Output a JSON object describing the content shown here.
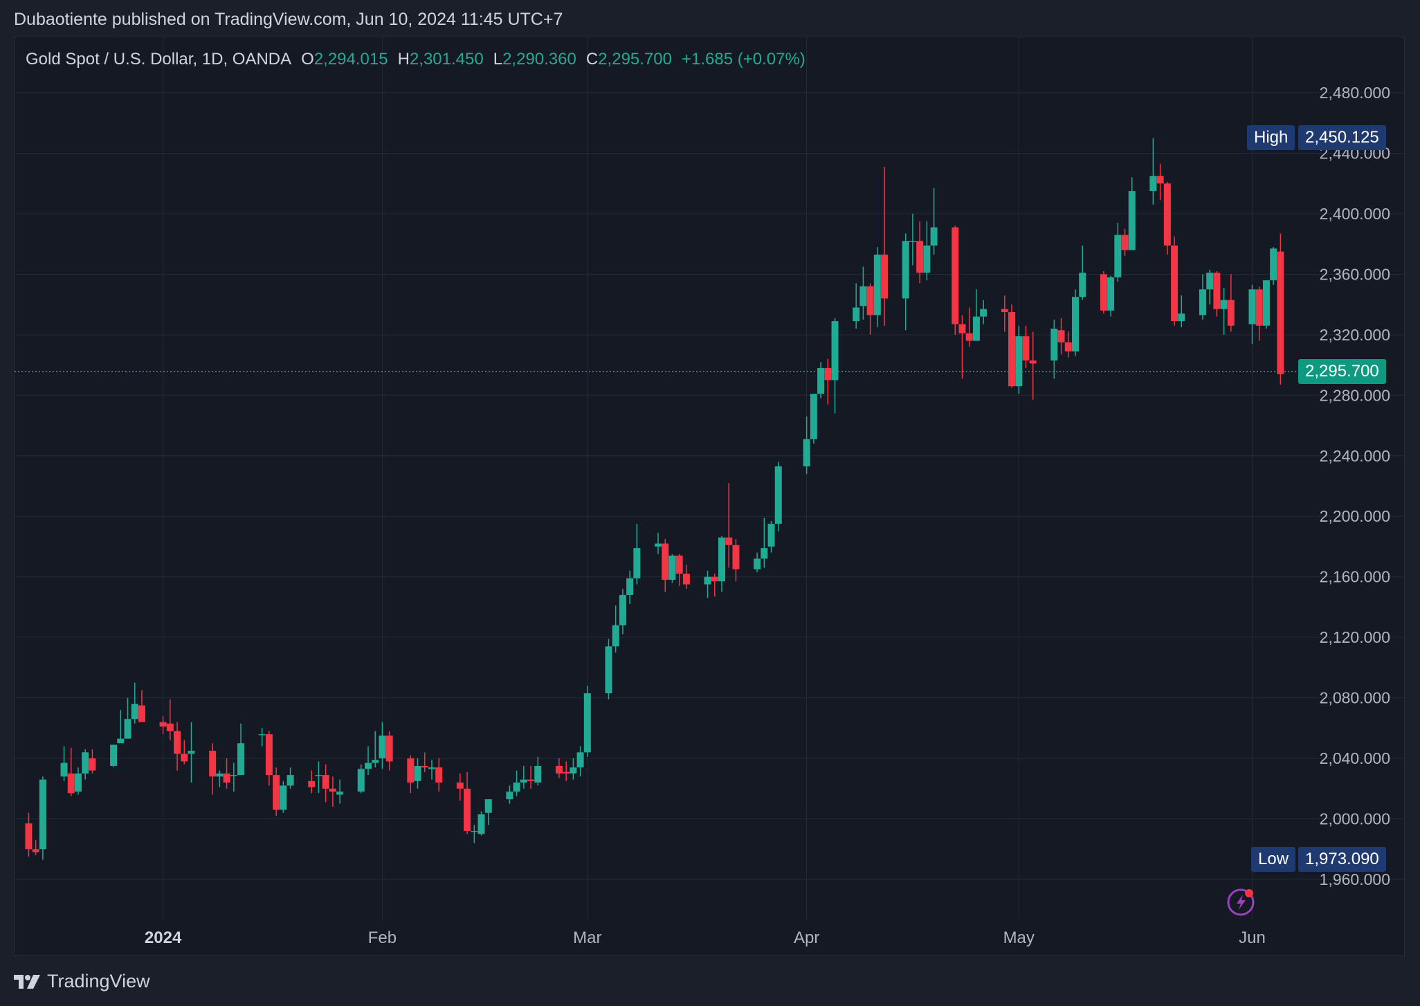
{
  "caption": "Dubaotiente published on TradingView.com, Jun 10, 2024 11:45 UTC+7",
  "header": {
    "symbol": "Gold Spot / U.S. Dollar, 1D, OANDA",
    "open_label": "O",
    "open": "2,294.015",
    "high_label": "H",
    "high": "2,301.450",
    "low_label": "L",
    "low": "2,290.360",
    "close_label": "C",
    "close": "2,295.700",
    "change": "+1.685 (+0.07%)"
  },
  "markers": {
    "high_label": "High",
    "high_value": "2,450.125",
    "low_label": "Low",
    "low_value": "1,973.090",
    "last_price": "2,295.700"
  },
  "footer": {
    "brand": "TradingView"
  },
  "icons": {
    "logo": "tradingview-logo-icon",
    "alert": "lightning-bolt-icon"
  },
  "colors": {
    "up": "#22ab94",
    "down": "#f23645",
    "background": "#151924",
    "grid": "#252a36",
    "axis_text": "#b2b5be",
    "badge": "#1e3a70",
    "last_price_badge": "#0e9981"
  },
  "chart_data": {
    "type": "candlestick",
    "title": "Gold Spot / U.S. Dollar, 1D, OANDA",
    "xlabel": "",
    "ylabel": "",
    "ylim": [
      1920,
      2510
    ],
    "y_ticks": [
      "2,480.000",
      "2,440.000",
      "2,400.000",
      "2,360.000",
      "2,320.000",
      "2,280.000",
      "2,240.000",
      "2,200.000",
      "2,160.000",
      "2,120.000",
      "2,080.000",
      "2,040.000",
      "2,000.000",
      "1,960.000"
    ],
    "y_tick_values": [
      2480,
      2440,
      2400,
      2360,
      2320,
      2280,
      2240,
      2200,
      2160,
      2120,
      2080,
      2040,
      2000,
      1960
    ],
    "x_ticks": [
      {
        "label": "2024",
        "date": "2024-01-01",
        "bold": true
      },
      {
        "label": "Feb",
        "date": "2024-02-01"
      },
      {
        "label": "Mar",
        "date": "2024-03-01"
      },
      {
        "label": "Apr",
        "date": "2024-04-01"
      },
      {
        "label": "May",
        "date": "2024-05-01"
      },
      {
        "label": "Jun",
        "date": "2024-06-03"
      }
    ],
    "grid": true,
    "last_price": 2295.7,
    "candles": [
      {
        "date": "2023-12-13",
        "o": 1997,
        "h": 2004,
        "l": 1975,
        "c": 1980
      },
      {
        "date": "2023-12-14",
        "o": 1980,
        "h": 1986,
        "l": 1976,
        "c": 1978
      },
      {
        "date": "2023-12-15",
        "o": 1980,
        "h": 2028,
        "l": 1973,
        "c": 2026
      },
      {
        "date": "2023-12-18",
        "o": 2028,
        "h": 2048,
        "l": 2025,
        "c": 2037
      },
      {
        "date": "2023-12-19",
        "o": 2030,
        "h": 2047,
        "l": 2015,
        "c": 2017
      },
      {
        "date": "2023-12-20",
        "o": 2018,
        "h": 2034,
        "l": 2016,
        "c": 2030
      },
      {
        "date": "2023-12-21",
        "o": 2030,
        "h": 2046,
        "l": 2026,
        "c": 2044
      },
      {
        "date": "2023-12-22",
        "o": 2040,
        "h": 2046,
        "l": 2030,
        "c": 2032
      },
      {
        "date": "2023-12-25",
        "o": 2035,
        "h": 2048,
        "l": 2034,
        "c": 2049
      },
      {
        "date": "2023-12-26",
        "o": 2050,
        "h": 2072,
        "l": 2052,
        "c": 2053
      },
      {
        "date": "2023-12-27",
        "o": 2053,
        "h": 2080,
        "l": 2055,
        "c": 2066
      },
      {
        "date": "2023-12-28",
        "o": 2066,
        "h": 2090,
        "l": 2063,
        "c": 2076
      },
      {
        "date": "2023-12-29",
        "o": 2075,
        "h": 2085,
        "l": 2064,
        "c": 2064
      },
      {
        "date": "2024-01-01",
        "o": 2064,
        "h": 2068,
        "l": 2056,
        "c": 2061
      },
      {
        "date": "2024-01-02",
        "o": 2063,
        "h": 2079,
        "l": 2052,
        "c": 2058
      },
      {
        "date": "2024-01-03",
        "o": 2058,
        "h": 2064,
        "l": 2032,
        "c": 2043
      },
      {
        "date": "2024-01-04",
        "o": 2043,
        "h": 2052,
        "l": 2036,
        "c": 2038
      },
      {
        "date": "2024-01-05",
        "o": 2043,
        "h": 2064,
        "l": 2024,
        "c": 2045
      },
      {
        "date": "2024-01-08",
        "o": 2045,
        "h": 2050,
        "l": 2016,
        "c": 2028
      },
      {
        "date": "2024-01-09",
        "o": 2028,
        "h": 2032,
        "l": 2021,
        "c": 2030
      },
      {
        "date": "2024-01-10",
        "o": 2030,
        "h": 2040,
        "l": 2020,
        "c": 2024
      },
      {
        "date": "2024-01-11",
        "o": 2029,
        "h": 2037,
        "l": 2018,
        "c": 2029
      },
      {
        "date": "2024-01-12",
        "o": 2029,
        "h": 2063,
        "l": 2029,
        "c": 2050
      },
      {
        "date": "2024-01-15",
        "o": 2056,
        "h": 2060,
        "l": 2048,
        "c": 2056
      },
      {
        "date": "2024-01-16",
        "o": 2056,
        "h": 2058,
        "l": 2022,
        "c": 2029
      },
      {
        "date": "2024-01-17",
        "o": 2029,
        "h": 2034,
        "l": 2002,
        "c": 2006
      },
      {
        "date": "2024-01-18",
        "o": 2006,
        "h": 2025,
        "l": 2004,
        "c": 2022
      },
      {
        "date": "2024-01-19",
        "o": 2022,
        "h": 2034,
        "l": 2020,
        "c": 2029
      },
      {
        "date": "2024-01-22",
        "o": 2025,
        "h": 2032,
        "l": 2017,
        "c": 2021
      },
      {
        "date": "2024-01-23",
        "o": 2029,
        "h": 2038,
        "l": 2017,
        "c": 2029
      },
      {
        "date": "2024-01-24",
        "o": 2029,
        "h": 2036,
        "l": 2011,
        "c": 2020
      },
      {
        "date": "2024-01-25",
        "o": 2020,
        "h": 2028,
        "l": 2008,
        "c": 2018
      },
      {
        "date": "2024-01-26",
        "o": 2016,
        "h": 2026,
        "l": 2010,
        "c": 2018
      },
      {
        "date": "2024-01-29",
        "o": 2018,
        "h": 2036,
        "l": 2017,
        "c": 2033
      },
      {
        "date": "2024-01-30",
        "o": 2033,
        "h": 2048,
        "l": 2029,
        "c": 2037
      },
      {
        "date": "2024-01-31",
        "o": 2037,
        "h": 2058,
        "l": 2034,
        "c": 2039
      },
      {
        "date": "2024-02-01",
        "o": 2040,
        "h": 2064,
        "l": 2033,
        "c": 2055
      },
      {
        "date": "2024-02-02",
        "o": 2055,
        "h": 2058,
        "l": 2032,
        "c": 2038
      },
      {
        "date": "2024-02-05",
        "o": 2040,
        "h": 2042,
        "l": 2017,
        "c": 2024
      },
      {
        "date": "2024-02-06",
        "o": 2025,
        "h": 2040,
        "l": 2020,
        "c": 2035
      },
      {
        "date": "2024-02-07",
        "o": 2035,
        "h": 2044,
        "l": 2031,
        "c": 2034
      },
      {
        "date": "2024-02-08",
        "o": 2033,
        "h": 2039,
        "l": 2026,
        "c": 2034
      },
      {
        "date": "2024-02-09",
        "o": 2034,
        "h": 2040,
        "l": 2018,
        "c": 2024
      },
      {
        "date": "2024-02-12",
        "o": 2024,
        "h": 2030,
        "l": 2012,
        "c": 2020
      },
      {
        "date": "2024-02-13",
        "o": 2020,
        "h": 2031,
        "l": 1990,
        "c": 1992
      },
      {
        "date": "2024-02-14",
        "o": 1992,
        "h": 1996,
        "l": 1984,
        "c": 1992
      },
      {
        "date": "2024-02-15",
        "o": 1990,
        "h": 2005,
        "l": 1989,
        "c": 2003
      },
      {
        "date": "2024-02-16",
        "o": 2004,
        "h": 2013,
        "l": 1996,
        "c": 2013
      },
      {
        "date": "2024-02-19",
        "o": 2013,
        "h": 2022,
        "l": 2010,
        "c": 2018
      },
      {
        "date": "2024-02-20",
        "o": 2018,
        "h": 2032,
        "l": 2015,
        "c": 2024
      },
      {
        "date": "2024-02-21",
        "o": 2024,
        "h": 2035,
        "l": 2020,
        "c": 2026
      },
      {
        "date": "2024-02-22",
        "o": 2026,
        "h": 2035,
        "l": 2020,
        "c": 2025
      },
      {
        "date": "2024-02-23",
        "o": 2024,
        "h": 2041,
        "l": 2022,
        "c": 2035
      },
      {
        "date": "2024-02-26",
        "o": 2035,
        "h": 2040,
        "l": 2027,
        "c": 2030
      },
      {
        "date": "2024-02-27",
        "o": 2031,
        "h": 2038,
        "l": 2025,
        "c": 2030
      },
      {
        "date": "2024-02-28",
        "o": 2030,
        "h": 2040,
        "l": 2026,
        "c": 2034
      },
      {
        "date": "2024-02-29",
        "o": 2034,
        "h": 2048,
        "l": 2028,
        "c": 2044
      },
      {
        "date": "2024-03-01",
        "o": 2044,
        "h": 2088,
        "l": 2041,
        "c": 2083
      },
      {
        "date": "2024-03-04",
        "o": 2083,
        "h": 2119,
        "l": 2079,
        "c": 2114
      },
      {
        "date": "2024-03-05",
        "o": 2114,
        "h": 2141,
        "l": 2110,
        "c": 2128
      },
      {
        "date": "2024-03-06",
        "o": 2128,
        "h": 2152,
        "l": 2122,
        "c": 2148
      },
      {
        "date": "2024-03-07",
        "o": 2148,
        "h": 2164,
        "l": 2142,
        "c": 2159
      },
      {
        "date": "2024-03-08",
        "o": 2159,
        "h": 2195,
        "l": 2155,
        "c": 2179
      },
      {
        "date": "2024-03-11",
        "o": 2180,
        "h": 2189,
        "l": 2175,
        "c": 2182
      },
      {
        "date": "2024-03-12",
        "o": 2182,
        "h": 2185,
        "l": 2150,
        "c": 2158
      },
      {
        "date": "2024-03-13",
        "o": 2158,
        "h": 2175,
        "l": 2156,
        "c": 2174
      },
      {
        "date": "2024-03-14",
        "o": 2174,
        "h": 2175,
        "l": 2154,
        "c": 2162
      },
      {
        "date": "2024-03-15",
        "o": 2162,
        "h": 2168,
        "l": 2152,
        "c": 2155
      },
      {
        "date": "2024-03-18",
        "o": 2155,
        "h": 2164,
        "l": 2146,
        "c": 2160
      },
      {
        "date": "2024-03-19",
        "o": 2160,
        "h": 2162,
        "l": 2147,
        "c": 2157
      },
      {
        "date": "2024-03-20",
        "o": 2157,
        "h": 2187,
        "l": 2150,
        "c": 2186
      },
      {
        "date": "2024-03-21",
        "o": 2186,
        "h": 2222,
        "l": 2166,
        "c": 2181
      },
      {
        "date": "2024-03-22",
        "o": 2181,
        "h": 2185,
        "l": 2157,
        "c": 2165
      },
      {
        "date": "2024-03-25",
        "o": 2165,
        "h": 2176,
        "l": 2163,
        "c": 2172
      },
      {
        "date": "2024-03-26",
        "o": 2172,
        "h": 2199,
        "l": 2166,
        "c": 2179
      },
      {
        "date": "2024-03-27",
        "o": 2180,
        "h": 2197,
        "l": 2176,
        "c": 2195
      },
      {
        "date": "2024-03-28",
        "o": 2195,
        "h": 2236,
        "l": 2190,
        "c": 2233
      },
      {
        "date": "2024-04-01",
        "o": 2233,
        "h": 2266,
        "l": 2228,
        "c": 2251
      },
      {
        "date": "2024-04-02",
        "o": 2251,
        "h": 2281,
        "l": 2248,
        "c": 2281
      },
      {
        "date": "2024-04-03",
        "o": 2281,
        "h": 2302,
        "l": 2278,
        "c": 2298
      },
      {
        "date": "2024-04-04",
        "o": 2298,
        "h": 2304,
        "l": 2274,
        "c": 2290
      },
      {
        "date": "2024-04-05",
        "o": 2290,
        "h": 2331,
        "l": 2268,
        "c": 2329
      },
      {
        "date": "2024-04-08",
        "o": 2329,
        "h": 2354,
        "l": 2324,
        "c": 2338
      },
      {
        "date": "2024-04-09",
        "o": 2339,
        "h": 2365,
        "l": 2330,
        "c": 2352
      },
      {
        "date": "2024-04-10",
        "o": 2352,
        "h": 2354,
        "l": 2320,
        "c": 2333
      },
      {
        "date": "2024-04-11",
        "o": 2333,
        "h": 2378,
        "l": 2325,
        "c": 2373
      },
      {
        "date": "2024-04-12",
        "o": 2373,
        "h": 2431,
        "l": 2326,
        "c": 2344
      },
      {
        "date": "2024-04-15",
        "o": 2344,
        "h": 2387,
        "l": 2323,
        "c": 2382
      },
      {
        "date": "2024-04-16",
        "o": 2382,
        "h": 2400,
        "l": 2366,
        "c": 2382
      },
      {
        "date": "2024-04-17",
        "o": 2382,
        "h": 2395,
        "l": 2354,
        "c": 2361
      },
      {
        "date": "2024-04-18",
        "o": 2361,
        "h": 2395,
        "l": 2356,
        "c": 2379
      },
      {
        "date": "2024-04-19",
        "o": 2379,
        "h": 2417,
        "l": 2373,
        "c": 2391
      },
      {
        "date": "2024-04-22",
        "o": 2391,
        "h": 2392,
        "l": 2320,
        "c": 2327
      },
      {
        "date": "2024-04-23",
        "o": 2327,
        "h": 2333,
        "l": 2291,
        "c": 2321
      },
      {
        "date": "2024-04-24",
        "o": 2321,
        "h": 2338,
        "l": 2312,
        "c": 2316
      },
      {
        "date": "2024-04-25",
        "o": 2316,
        "h": 2350,
        "l": 2316,
        "c": 2332
      },
      {
        "date": "2024-04-26",
        "o": 2332,
        "h": 2343,
        "l": 2327,
        "c": 2337
      },
      {
        "date": "2024-04-29",
        "o": 2337,
        "h": 2346,
        "l": 2322,
        "c": 2335
      },
      {
        "date": "2024-04-30",
        "o": 2335,
        "h": 2340,
        "l": 2285,
        "c": 2286
      },
      {
        "date": "2024-05-01",
        "o": 2286,
        "h": 2326,
        "l": 2281,
        "c": 2319
      },
      {
        "date": "2024-05-02",
        "o": 2319,
        "h": 2326,
        "l": 2298,
        "c": 2303
      },
      {
        "date": "2024-05-03",
        "o": 2303,
        "h": 2322,
        "l": 2277,
        "c": 2301
      },
      {
        "date": "2024-05-06",
        "o": 2303,
        "h": 2330,
        "l": 2291,
        "c": 2324
      },
      {
        "date": "2024-05-07",
        "o": 2323,
        "h": 2331,
        "l": 2307,
        "c": 2315
      },
      {
        "date": "2024-05-08",
        "o": 2315,
        "h": 2322,
        "l": 2305,
        "c": 2309
      },
      {
        "date": "2024-05-09",
        "o": 2309,
        "h": 2350,
        "l": 2306,
        "c": 2345
      },
      {
        "date": "2024-05-10",
        "o": 2345,
        "h": 2379,
        "l": 2343,
        "c": 2361
      },
      {
        "date": "2024-05-13",
        "o": 2360,
        "h": 2362,
        "l": 2334,
        "c": 2336
      },
      {
        "date": "2024-05-14",
        "o": 2336,
        "h": 2359,
        "l": 2332,
        "c": 2358
      },
      {
        "date": "2024-05-15",
        "o": 2358,
        "h": 2394,
        "l": 2355,
        "c": 2386
      },
      {
        "date": "2024-05-16",
        "o": 2386,
        "h": 2390,
        "l": 2372,
        "c": 2376
      },
      {
        "date": "2024-05-17",
        "o": 2376,
        "h": 2424,
        "l": 2376,
        "c": 2415
      },
      {
        "date": "2024-05-20",
        "o": 2415,
        "h": 2450,
        "l": 2406,
        "c": 2425
      },
      {
        "date": "2024-05-21",
        "o": 2425,
        "h": 2433,
        "l": 2409,
        "c": 2420
      },
      {
        "date": "2024-05-22",
        "o": 2420,
        "h": 2421,
        "l": 2373,
        "c": 2379
      },
      {
        "date": "2024-05-23",
        "o": 2379,
        "h": 2385,
        "l": 2326,
        "c": 2329
      },
      {
        "date": "2024-05-24",
        "o": 2329,
        "h": 2346,
        "l": 2325,
        "c": 2334
      },
      {
        "date": "2024-05-27",
        "o": 2333,
        "h": 2360,
        "l": 2330,
        "c": 2350
      },
      {
        "date": "2024-05-28",
        "o": 2350,
        "h": 2363,
        "l": 2340,
        "c": 2361
      },
      {
        "date": "2024-05-29",
        "o": 2361,
        "h": 2362,
        "l": 2332,
        "c": 2337
      },
      {
        "date": "2024-05-30",
        "o": 2337,
        "h": 2351,
        "l": 2320,
        "c": 2343
      },
      {
        "date": "2024-05-31",
        "o": 2343,
        "h": 2360,
        "l": 2322,
        "c": 2326
      },
      {
        "date": "2024-06-03",
        "o": 2327,
        "h": 2353,
        "l": 2314,
        "c": 2350
      },
      {
        "date": "2024-06-04",
        "o": 2350,
        "h": 2352,
        "l": 2316,
        "c": 2326
      },
      {
        "date": "2024-06-05",
        "o": 2326,
        "h": 2356,
        "l": 2324,
        "c": 2356
      },
      {
        "date": "2024-06-06",
        "o": 2356,
        "h": 2378,
        "l": 2353,
        "c": 2377
      },
      {
        "date": "2024-06-07",
        "o": 2375,
        "h": 2387,
        "l": 2287,
        "c": 2294
      },
      {
        "date": "2024-06-10",
        "o": 2294.015,
        "h": 2301.45,
        "l": 2290.36,
        "c": 2295.7
      }
    ]
  }
}
